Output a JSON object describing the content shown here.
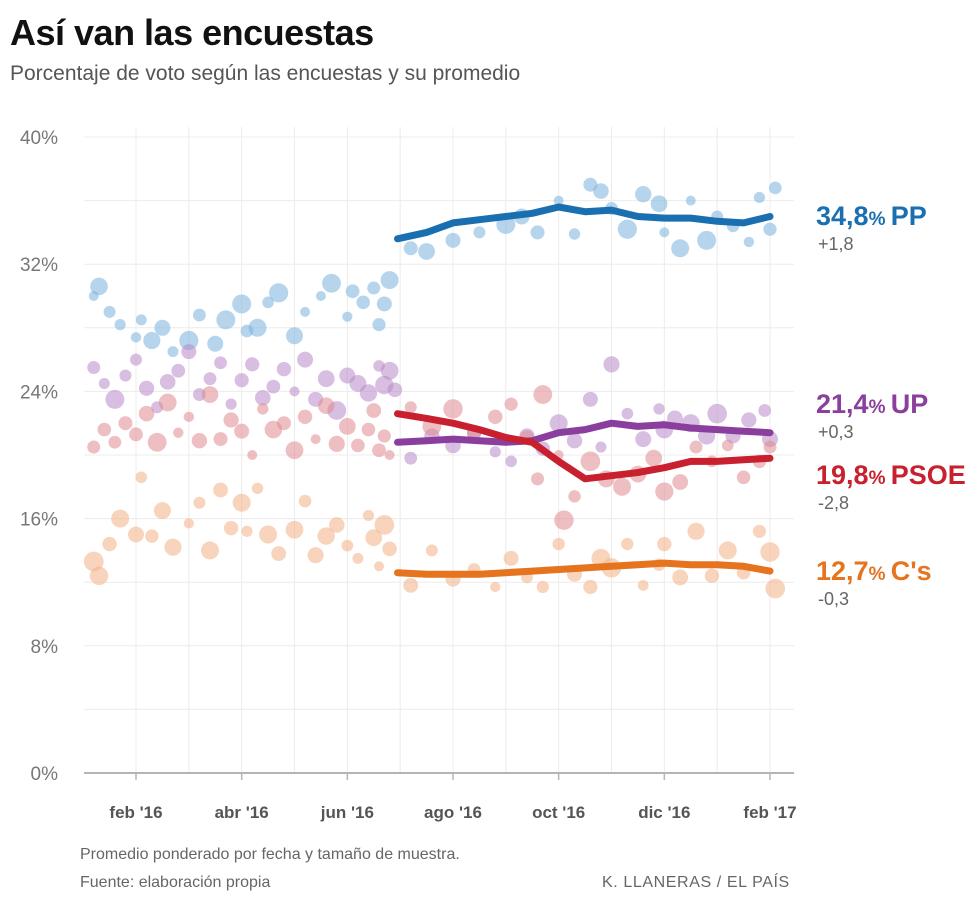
{
  "title": "Así van las encuestas",
  "subtitle": "Porcentaje de voto según las encuestas y su promedio",
  "footer": {
    "note": "Promedio ponderado por fecha y tamaño de muestra.",
    "source": "Fuente: elaboración propia",
    "credit": "K. LLANERAS  /  EL PAÍS"
  },
  "chart_data": {
    "type": "scatter",
    "title": "Así van las encuestas",
    "subtitle": "Porcentaje de voto según las encuestas y su promedio",
    "x_unit": "months since 1 Jan 2016",
    "xlim": [
      0.0,
      13.3
    ],
    "ylim": [
      0,
      40
    ],
    "y_ticks": [
      0,
      8,
      16,
      24,
      32,
      40
    ],
    "y_tick_labels": [
      "0%",
      "8%",
      "16%",
      "24%",
      "32%",
      "40%"
    ],
    "x_ticks": [
      1,
      3,
      5,
      7,
      9,
      11,
      13
    ],
    "x_tick_labels": [
      "feb '16",
      "abr '16",
      "jun '16",
      "ago '16",
      "oct '16",
      "dic '16",
      "feb '17"
    ],
    "grid": true,
    "series": [
      {
        "name": "PP",
        "color": "#1a6fb0",
        "point_color": "#7ab3dc",
        "end_value": "34,8",
        "end_unit": "%",
        "end_change": "+1,8",
        "average": [
          [
            5.95,
            33.6
          ],
          [
            6.5,
            34.0
          ],
          [
            7.0,
            34.6
          ],
          [
            7.5,
            34.8
          ],
          [
            8.0,
            35.0
          ],
          [
            8.5,
            35.2
          ],
          [
            9.0,
            35.6
          ],
          [
            9.5,
            35.3
          ],
          [
            10.0,
            35.4
          ],
          [
            10.5,
            35.0
          ],
          [
            11.0,
            34.9
          ],
          [
            11.5,
            34.9
          ],
          [
            12.0,
            34.7
          ],
          [
            12.5,
            34.6
          ],
          [
            13.0,
            35.0
          ]
        ],
        "polls": [
          [
            0.2,
            30.0
          ],
          [
            0.3,
            30.6
          ],
          [
            0.5,
            29.0
          ],
          [
            0.7,
            28.2
          ],
          [
            1.0,
            27.4
          ],
          [
            1.1,
            28.5
          ],
          [
            1.3,
            27.2
          ],
          [
            1.5,
            28.0
          ],
          [
            1.7,
            26.5
          ],
          [
            2.0,
            27.2
          ],
          [
            2.2,
            28.8
          ],
          [
            2.5,
            27.0
          ],
          [
            2.7,
            28.5
          ],
          [
            3.0,
            29.5
          ],
          [
            3.1,
            27.8
          ],
          [
            3.3,
            28.0
          ],
          [
            3.5,
            29.6
          ],
          [
            3.7,
            30.2
          ],
          [
            4.0,
            27.5
          ],
          [
            4.2,
            29.0
          ],
          [
            4.5,
            30.0
          ],
          [
            4.7,
            30.8
          ],
          [
            5.0,
            28.7
          ],
          [
            5.1,
            30.3
          ],
          [
            5.3,
            29.6
          ],
          [
            5.5,
            30.5
          ],
          [
            5.6,
            28.2
          ],
          [
            5.7,
            29.5
          ],
          [
            5.8,
            31.0
          ],
          [
            6.2,
            33.0
          ],
          [
            6.5,
            32.8
          ],
          [
            7.0,
            33.5
          ],
          [
            7.5,
            34.0
          ],
          [
            8.0,
            34.5
          ],
          [
            8.3,
            35.0
          ],
          [
            8.6,
            34.0
          ],
          [
            9.0,
            36.0
          ],
          [
            9.3,
            33.9
          ],
          [
            9.6,
            37.0
          ],
          [
            9.8,
            36.6
          ],
          [
            10.0,
            35.5
          ],
          [
            10.3,
            34.2
          ],
          [
            10.6,
            36.4
          ],
          [
            10.9,
            35.8
          ],
          [
            11.0,
            34.0
          ],
          [
            11.3,
            33.0
          ],
          [
            11.5,
            36.0
          ],
          [
            11.8,
            33.5
          ],
          [
            12.0,
            35.0
          ],
          [
            12.3,
            34.4
          ],
          [
            12.6,
            33.4
          ],
          [
            12.8,
            36.2
          ],
          [
            13.0,
            34.2
          ],
          [
            13.1,
            36.8
          ]
        ]
      },
      {
        "name": "UP",
        "color": "#8a3f9e",
        "point_color": "#b888c9",
        "end_value": "21,4",
        "end_unit": "%",
        "end_change": "+0,3",
        "average": [
          [
            5.95,
            20.8
          ],
          [
            6.5,
            20.9
          ],
          [
            7.0,
            21.0
          ],
          [
            7.5,
            20.9
          ],
          [
            8.0,
            20.8
          ],
          [
            8.5,
            20.9
          ],
          [
            9.0,
            21.4
          ],
          [
            9.5,
            21.6
          ],
          [
            10.0,
            22.0
          ],
          [
            10.5,
            21.8
          ],
          [
            11.0,
            21.9
          ],
          [
            11.5,
            21.7
          ],
          [
            12.0,
            21.6
          ],
          [
            12.5,
            21.5
          ],
          [
            13.0,
            21.4
          ]
        ],
        "polls": [
          [
            0.2,
            25.5
          ],
          [
            0.4,
            24.5
          ],
          [
            0.6,
            23.5
          ],
          [
            0.8,
            25.0
          ],
          [
            1.0,
            26.0
          ],
          [
            1.2,
            24.2
          ],
          [
            1.4,
            23.0
          ],
          [
            1.6,
            24.6
          ],
          [
            1.8,
            25.3
          ],
          [
            2.0,
            26.5
          ],
          [
            2.2,
            23.8
          ],
          [
            2.4,
            24.8
          ],
          [
            2.6,
            25.8
          ],
          [
            2.8,
            23.2
          ],
          [
            3.0,
            24.7
          ],
          [
            3.2,
            25.7
          ],
          [
            3.4,
            23.6
          ],
          [
            3.6,
            24.3
          ],
          [
            3.8,
            25.4
          ],
          [
            4.0,
            24.0
          ],
          [
            4.2,
            26.0
          ],
          [
            4.4,
            23.5
          ],
          [
            4.6,
            24.8
          ],
          [
            4.8,
            22.8
          ],
          [
            5.0,
            25.0
          ],
          [
            5.2,
            24.5
          ],
          [
            5.4,
            23.9
          ],
          [
            5.6,
            25.6
          ],
          [
            5.7,
            24.4
          ],
          [
            5.8,
            25.3
          ],
          [
            5.9,
            24.1
          ],
          [
            6.2,
            19.8
          ],
          [
            6.6,
            21.2
          ],
          [
            7.0,
            20.6
          ],
          [
            7.4,
            21.4
          ],
          [
            7.8,
            20.2
          ],
          [
            8.1,
            19.6
          ],
          [
            8.4,
            21.2
          ],
          [
            8.7,
            20.4
          ],
          [
            9.0,
            22.0
          ],
          [
            9.3,
            20.9
          ],
          [
            9.6,
            23.5
          ],
          [
            9.8,
            20.5
          ],
          [
            10.0,
            25.7
          ],
          [
            10.3,
            22.6
          ],
          [
            10.6,
            21.0
          ],
          [
            10.9,
            22.9
          ],
          [
            11.0,
            21.6
          ],
          [
            11.2,
            22.3
          ],
          [
            11.5,
            22.0
          ],
          [
            11.8,
            21.2
          ],
          [
            12.0,
            22.6
          ],
          [
            12.3,
            21.2
          ],
          [
            12.6,
            22.2
          ],
          [
            12.9,
            22.8
          ],
          [
            13.0,
            21.0
          ]
        ]
      },
      {
        "name": "PSOE",
        "color": "#c8202f",
        "point_color": "#e08a90",
        "end_value": "19,8",
        "end_unit": "%",
        "end_change": "-2,8",
        "average": [
          [
            5.95,
            22.6
          ],
          [
            6.5,
            22.3
          ],
          [
            7.0,
            22.0
          ],
          [
            7.5,
            21.6
          ],
          [
            8.0,
            21.1
          ],
          [
            8.5,
            20.8
          ],
          [
            9.0,
            19.6
          ],
          [
            9.5,
            18.5
          ],
          [
            10.0,
            18.7
          ],
          [
            10.5,
            18.9
          ],
          [
            11.0,
            19.2
          ],
          [
            11.5,
            19.6
          ],
          [
            12.0,
            19.6
          ],
          [
            12.5,
            19.7
          ],
          [
            13.0,
            19.8
          ]
        ],
        "polls": [
          [
            0.2,
            20.5
          ],
          [
            0.4,
            21.6
          ],
          [
            0.6,
            20.8
          ],
          [
            0.8,
            22.0
          ],
          [
            1.0,
            21.3
          ],
          [
            1.2,
            22.6
          ],
          [
            1.4,
            20.8
          ],
          [
            1.6,
            23.3
          ],
          [
            1.8,
            21.4
          ],
          [
            2.0,
            22.4
          ],
          [
            2.2,
            20.9
          ],
          [
            2.4,
            23.8
          ],
          [
            2.6,
            21.0
          ],
          [
            2.8,
            22.2
          ],
          [
            3.0,
            21.5
          ],
          [
            3.2,
            20.0
          ],
          [
            3.4,
            22.9
          ],
          [
            3.6,
            21.6
          ],
          [
            3.8,
            22.0
          ],
          [
            4.0,
            20.3
          ],
          [
            4.2,
            22.4
          ],
          [
            4.4,
            21.0
          ],
          [
            4.6,
            23.1
          ],
          [
            4.8,
            20.7
          ],
          [
            5.0,
            21.8
          ],
          [
            5.2,
            20.6
          ],
          [
            5.4,
            21.6
          ],
          [
            5.5,
            22.8
          ],
          [
            5.6,
            20.3
          ],
          [
            5.7,
            21.2
          ],
          [
            5.8,
            20.0
          ],
          [
            6.2,
            23.0
          ],
          [
            6.6,
            21.8
          ],
          [
            7.0,
            22.9
          ],
          [
            7.4,
            21.4
          ],
          [
            7.8,
            22.4
          ],
          [
            8.1,
            23.2
          ],
          [
            8.4,
            21.1
          ],
          [
            8.6,
            18.5
          ],
          [
            8.7,
            23.8
          ],
          [
            9.0,
            20.0
          ],
          [
            9.1,
            15.9
          ],
          [
            9.3,
            17.4
          ],
          [
            9.6,
            19.6
          ],
          [
            9.9,
            18.5
          ],
          [
            10.2,
            18.0
          ],
          [
            10.5,
            18.8
          ],
          [
            10.8,
            19.8
          ],
          [
            11.0,
            17.7
          ],
          [
            11.3,
            18.3
          ],
          [
            11.6,
            20.5
          ],
          [
            11.9,
            19.6
          ],
          [
            12.2,
            20.6
          ],
          [
            12.5,
            18.6
          ],
          [
            12.8,
            19.6
          ],
          [
            13.0,
            20.5
          ]
        ]
      },
      {
        "name": "C's",
        "color": "#e6731e",
        "point_color": "#f3b085",
        "end_value": "12,7",
        "end_unit": "%",
        "end_change": "-0,3",
        "average": [
          [
            5.95,
            12.6
          ],
          [
            6.5,
            12.5
          ],
          [
            7.0,
            12.5
          ],
          [
            7.5,
            12.5
          ],
          [
            8.0,
            12.6
          ],
          [
            8.5,
            12.7
          ],
          [
            9.0,
            12.8
          ],
          [
            9.5,
            12.9
          ],
          [
            10.0,
            13.0
          ],
          [
            10.5,
            13.1
          ],
          [
            11.0,
            13.2
          ],
          [
            11.5,
            13.1
          ],
          [
            12.0,
            13.1
          ],
          [
            12.5,
            13.0
          ],
          [
            13.0,
            12.7
          ]
        ],
        "polls": [
          [
            0.2,
            13.3
          ],
          [
            0.3,
            12.4
          ],
          [
            0.5,
            14.4
          ],
          [
            0.7,
            16.0
          ],
          [
            1.0,
            15.0
          ],
          [
            1.1,
            18.6
          ],
          [
            1.3,
            14.9
          ],
          [
            1.5,
            16.5
          ],
          [
            1.7,
            14.2
          ],
          [
            2.0,
            15.7
          ],
          [
            2.2,
            17.0
          ],
          [
            2.4,
            14.0
          ],
          [
            2.6,
            17.8
          ],
          [
            2.8,
            15.4
          ],
          [
            3.0,
            17.0
          ],
          [
            3.1,
            15.2
          ],
          [
            3.3,
            17.9
          ],
          [
            3.5,
            15.0
          ],
          [
            3.7,
            13.8
          ],
          [
            4.0,
            15.3
          ],
          [
            4.2,
            17.1
          ],
          [
            4.4,
            13.7
          ],
          [
            4.6,
            14.9
          ],
          [
            4.8,
            15.6
          ],
          [
            5.0,
            14.3
          ],
          [
            5.2,
            13.5
          ],
          [
            5.4,
            16.2
          ],
          [
            5.5,
            14.8
          ],
          [
            5.6,
            13.0
          ],
          [
            5.7,
            15.6
          ],
          [
            5.8,
            14.1
          ],
          [
            6.2,
            11.8
          ],
          [
            6.6,
            14.0
          ],
          [
            7.0,
            12.2
          ],
          [
            7.4,
            12.8
          ],
          [
            7.8,
            11.7
          ],
          [
            8.1,
            13.5
          ],
          [
            8.4,
            12.3
          ],
          [
            8.7,
            11.7
          ],
          [
            9.0,
            14.4
          ],
          [
            9.3,
            12.5
          ],
          [
            9.6,
            11.7
          ],
          [
            9.8,
            13.5
          ],
          [
            10.0,
            12.9
          ],
          [
            10.3,
            14.4
          ],
          [
            10.6,
            11.8
          ],
          [
            10.9,
            13.1
          ],
          [
            11.0,
            14.4
          ],
          [
            11.3,
            12.3
          ],
          [
            11.6,
            15.2
          ],
          [
            11.9,
            12.4
          ],
          [
            12.2,
            14.0
          ],
          [
            12.5,
            12.6
          ],
          [
            12.8,
            15.2
          ],
          [
            13.0,
            13.9
          ],
          [
            13.1,
            11.6
          ]
        ]
      }
    ]
  }
}
